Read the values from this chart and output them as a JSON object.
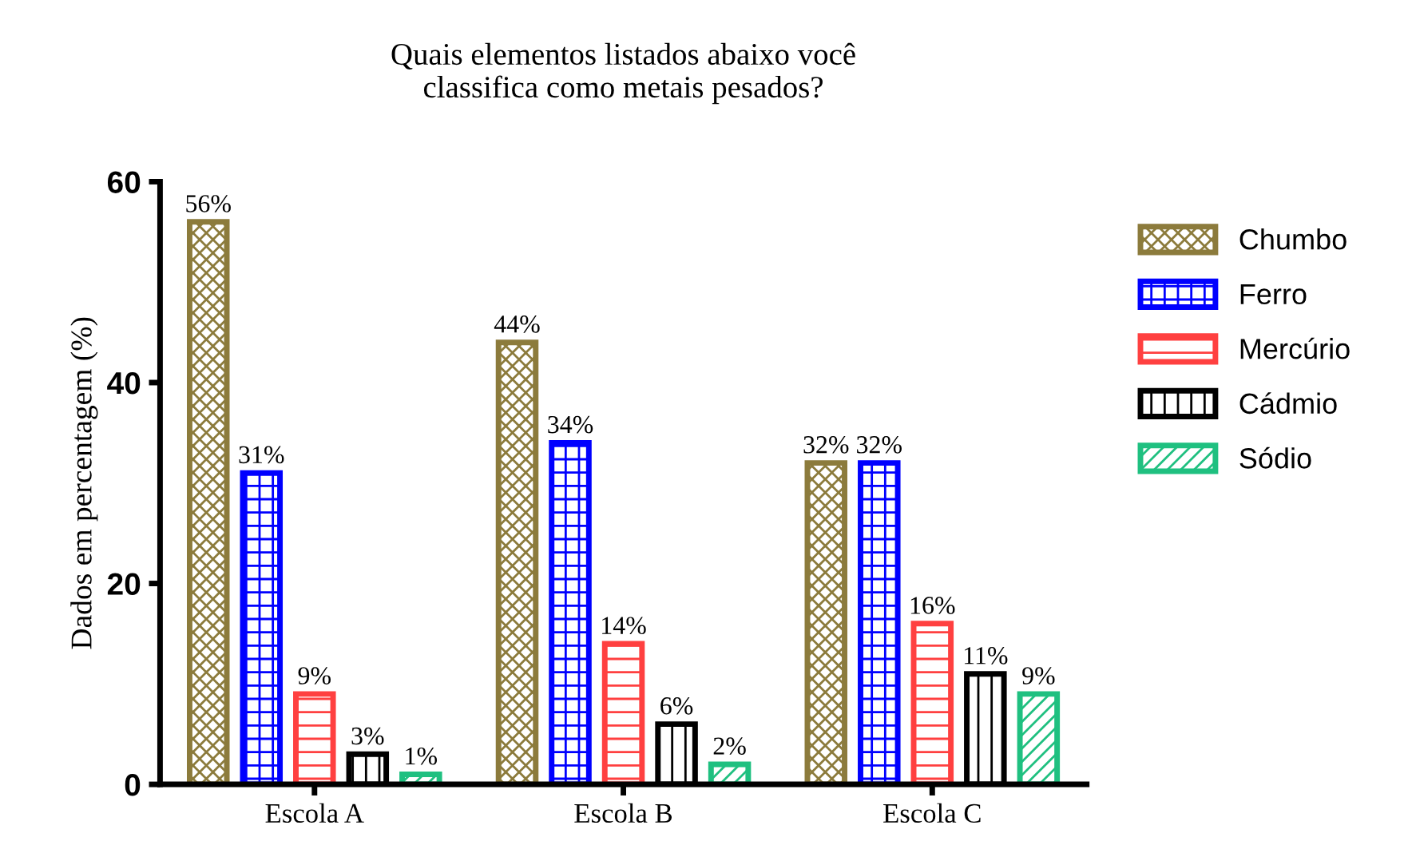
{
  "chart_data": {
    "type": "bar",
    "title": "Quais elementos listados abaixo você\nclassifica como metais pesados?",
    "ylabel": "Dados em percentagem (%)",
    "categories": [
      "Escola A",
      "Escola B",
      "Escola C"
    ],
    "series": [
      {
        "name": "Chumbo",
        "color": "#8c7b3c",
        "values": [
          56,
          44,
          32
        ],
        "value_labels": [
          "56%",
          "44%",
          "32%"
        ]
      },
      {
        "name": "Ferro",
        "color": "#0000ff",
        "values": [
          31,
          34,
          32
        ],
        "value_labels": [
          "31%",
          "34%",
          "32%"
        ]
      },
      {
        "name": "Mercúrio",
        "color": "#ff4040",
        "values": [
          9,
          14,
          16
        ],
        "value_labels": [
          "9%",
          "14%",
          "16%"
        ]
      },
      {
        "name": "Cádmio",
        "color": "#000000",
        "values": [
          3,
          6,
          11
        ],
        "value_labels": [
          "3%",
          "6%",
          "11%"
        ]
      },
      {
        "name": "Sódio",
        "color": "#1fc080",
        "values": [
          1,
          2,
          9
        ],
        "value_labels": [
          "1%",
          "2%",
          "9%"
        ]
      }
    ],
    "ylim": [
      0,
      60
    ],
    "yticks": [
      0,
      20,
      40,
      60
    ],
    "grid": false,
    "legend": "right"
  }
}
